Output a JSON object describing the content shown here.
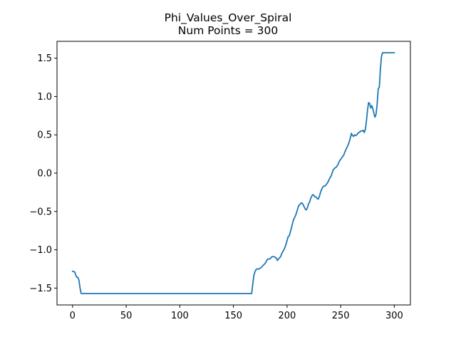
{
  "chart_data": {
    "type": "line",
    "title": "Phi_Values_Over_Spiral",
    "subtitle": "Num Points = 300",
    "xlabel": "",
    "ylabel": "",
    "xlim": [
      -14.5,
      315
    ],
    "ylim": [
      -1.72,
      1.72
    ],
    "x_ticks": [
      0,
      50,
      100,
      150,
      200,
      250,
      300
    ],
    "x_tick_labels": [
      "0",
      "50",
      "100",
      "150",
      "200",
      "250",
      "300"
    ],
    "y_ticks": [
      -1.5,
      -1.0,
      -0.5,
      0.0,
      0.5,
      1.0,
      1.5
    ],
    "y_tick_labels": [
      "−1.5",
      "−1.0",
      "−0.5",
      "0.0",
      "0.5",
      "1.0",
      "1.5"
    ],
    "grid": false,
    "series": [
      {
        "color": "#1f77b4",
        "points": [
          [
            0,
            -1.28
          ],
          [
            2,
            -1.29
          ],
          [
            3,
            -1.33
          ],
          [
            4,
            -1.36
          ],
          [
            5,
            -1.36
          ],
          [
            6,
            -1.4
          ],
          [
            7,
            -1.5
          ],
          [
            8,
            -1.571
          ],
          [
            167,
            -1.571
          ],
          [
            168,
            -1.45
          ],
          [
            169,
            -1.34
          ],
          [
            170,
            -1.29
          ],
          [
            171,
            -1.26
          ],
          [
            172,
            -1.25
          ],
          [
            174,
            -1.25
          ],
          [
            176,
            -1.23
          ],
          [
            178,
            -1.2
          ],
          [
            180,
            -1.17
          ],
          [
            181,
            -1.14
          ],
          [
            182,
            -1.12
          ],
          [
            184,
            -1.12
          ],
          [
            186,
            -1.09
          ],
          [
            188,
            -1.09
          ],
          [
            190,
            -1.11
          ],
          [
            191,
            -1.14
          ],
          [
            192,
            -1.12
          ],
          [
            194,
            -1.09
          ],
          [
            195,
            -1.05
          ],
          [
            197,
            -1.0
          ],
          [
            198,
            -0.97
          ],
          [
            199,
            -0.93
          ],
          [
            200,
            -0.88
          ],
          [
            201,
            -0.83
          ],
          [
            202,
            -0.82
          ],
          [
            203,
            -0.77
          ],
          [
            204,
            -0.72
          ],
          [
            205,
            -0.66
          ],
          [
            206,
            -0.61
          ],
          [
            207,
            -0.58
          ],
          [
            208,
            -0.55
          ],
          [
            209,
            -0.51
          ],
          [
            210,
            -0.46
          ],
          [
            211,
            -0.42
          ],
          [
            212,
            -0.41
          ],
          [
            213,
            -0.39
          ],
          [
            214,
            -0.39
          ],
          [
            215,
            -0.41
          ],
          [
            216,
            -0.44
          ],
          [
            217,
            -0.47
          ],
          [
            218,
            -0.48
          ],
          [
            219,
            -0.45
          ],
          [
            220,
            -0.4
          ],
          [
            221,
            -0.38
          ],
          [
            222,
            -0.33
          ],
          [
            223,
            -0.3
          ],
          [
            224,
            -0.28
          ],
          [
            225,
            -0.29
          ],
          [
            226,
            -0.31
          ],
          [
            227,
            -0.31
          ],
          [
            228,
            -0.33
          ],
          [
            229,
            -0.34
          ],
          [
            230,
            -0.31
          ],
          [
            231,
            -0.26
          ],
          [
            232,
            -0.22
          ],
          [
            233,
            -0.19
          ],
          [
            234,
            -0.17
          ],
          [
            235,
            -0.17
          ],
          [
            236,
            -0.16
          ],
          [
            237,
            -0.14
          ],
          [
            238,
            -0.12
          ],
          [
            239,
            -0.09
          ],
          [
            240,
            -0.06
          ],
          [
            241,
            -0.04
          ],
          [
            242,
            0.0
          ],
          [
            243,
            0.04
          ],
          [
            244,
            0.06
          ],
          [
            245,
            0.07
          ],
          [
            246,
            0.08
          ],
          [
            247,
            0.1
          ],
          [
            248,
            0.13
          ],
          [
            249,
            0.16
          ],
          [
            250,
            0.18
          ],
          [
            251,
            0.2
          ],
          [
            252,
            0.22
          ],
          [
            253,
            0.24
          ],
          [
            254,
            0.28
          ],
          [
            255,
            0.31
          ],
          [
            256,
            0.34
          ],
          [
            257,
            0.37
          ],
          [
            258,
            0.41
          ],
          [
            259,
            0.46
          ],
          [
            260,
            0.52
          ],
          [
            261,
            0.49
          ],
          [
            262,
            0.48
          ],
          [
            263,
            0.5
          ],
          [
            264,
            0.49
          ],
          [
            265,
            0.5
          ],
          [
            266,
            0.52
          ],
          [
            267,
            0.53
          ],
          [
            268,
            0.54
          ],
          [
            269,
            0.55
          ],
          [
            270,
            0.55
          ],
          [
            271,
            0.56
          ],
          [
            272,
            0.53
          ],
          [
            273,
            0.57
          ],
          [
            274,
            0.68
          ],
          [
            275,
            0.82
          ],
          [
            276,
            0.92
          ],
          [
            277,
            0.91
          ],
          [
            278,
            0.85
          ],
          [
            279,
            0.88
          ],
          [
            280,
            0.84
          ],
          [
            281,
            0.78
          ],
          [
            282,
            0.73
          ],
          [
            283,
            0.77
          ],
          [
            284,
            0.9
          ],
          [
            285,
            1.1
          ],
          [
            286,
            1.12
          ],
          [
            287,
            1.35
          ],
          [
            288,
            1.52
          ],
          [
            289,
            1.571
          ],
          [
            300,
            1.571
          ]
        ]
      }
    ]
  }
}
